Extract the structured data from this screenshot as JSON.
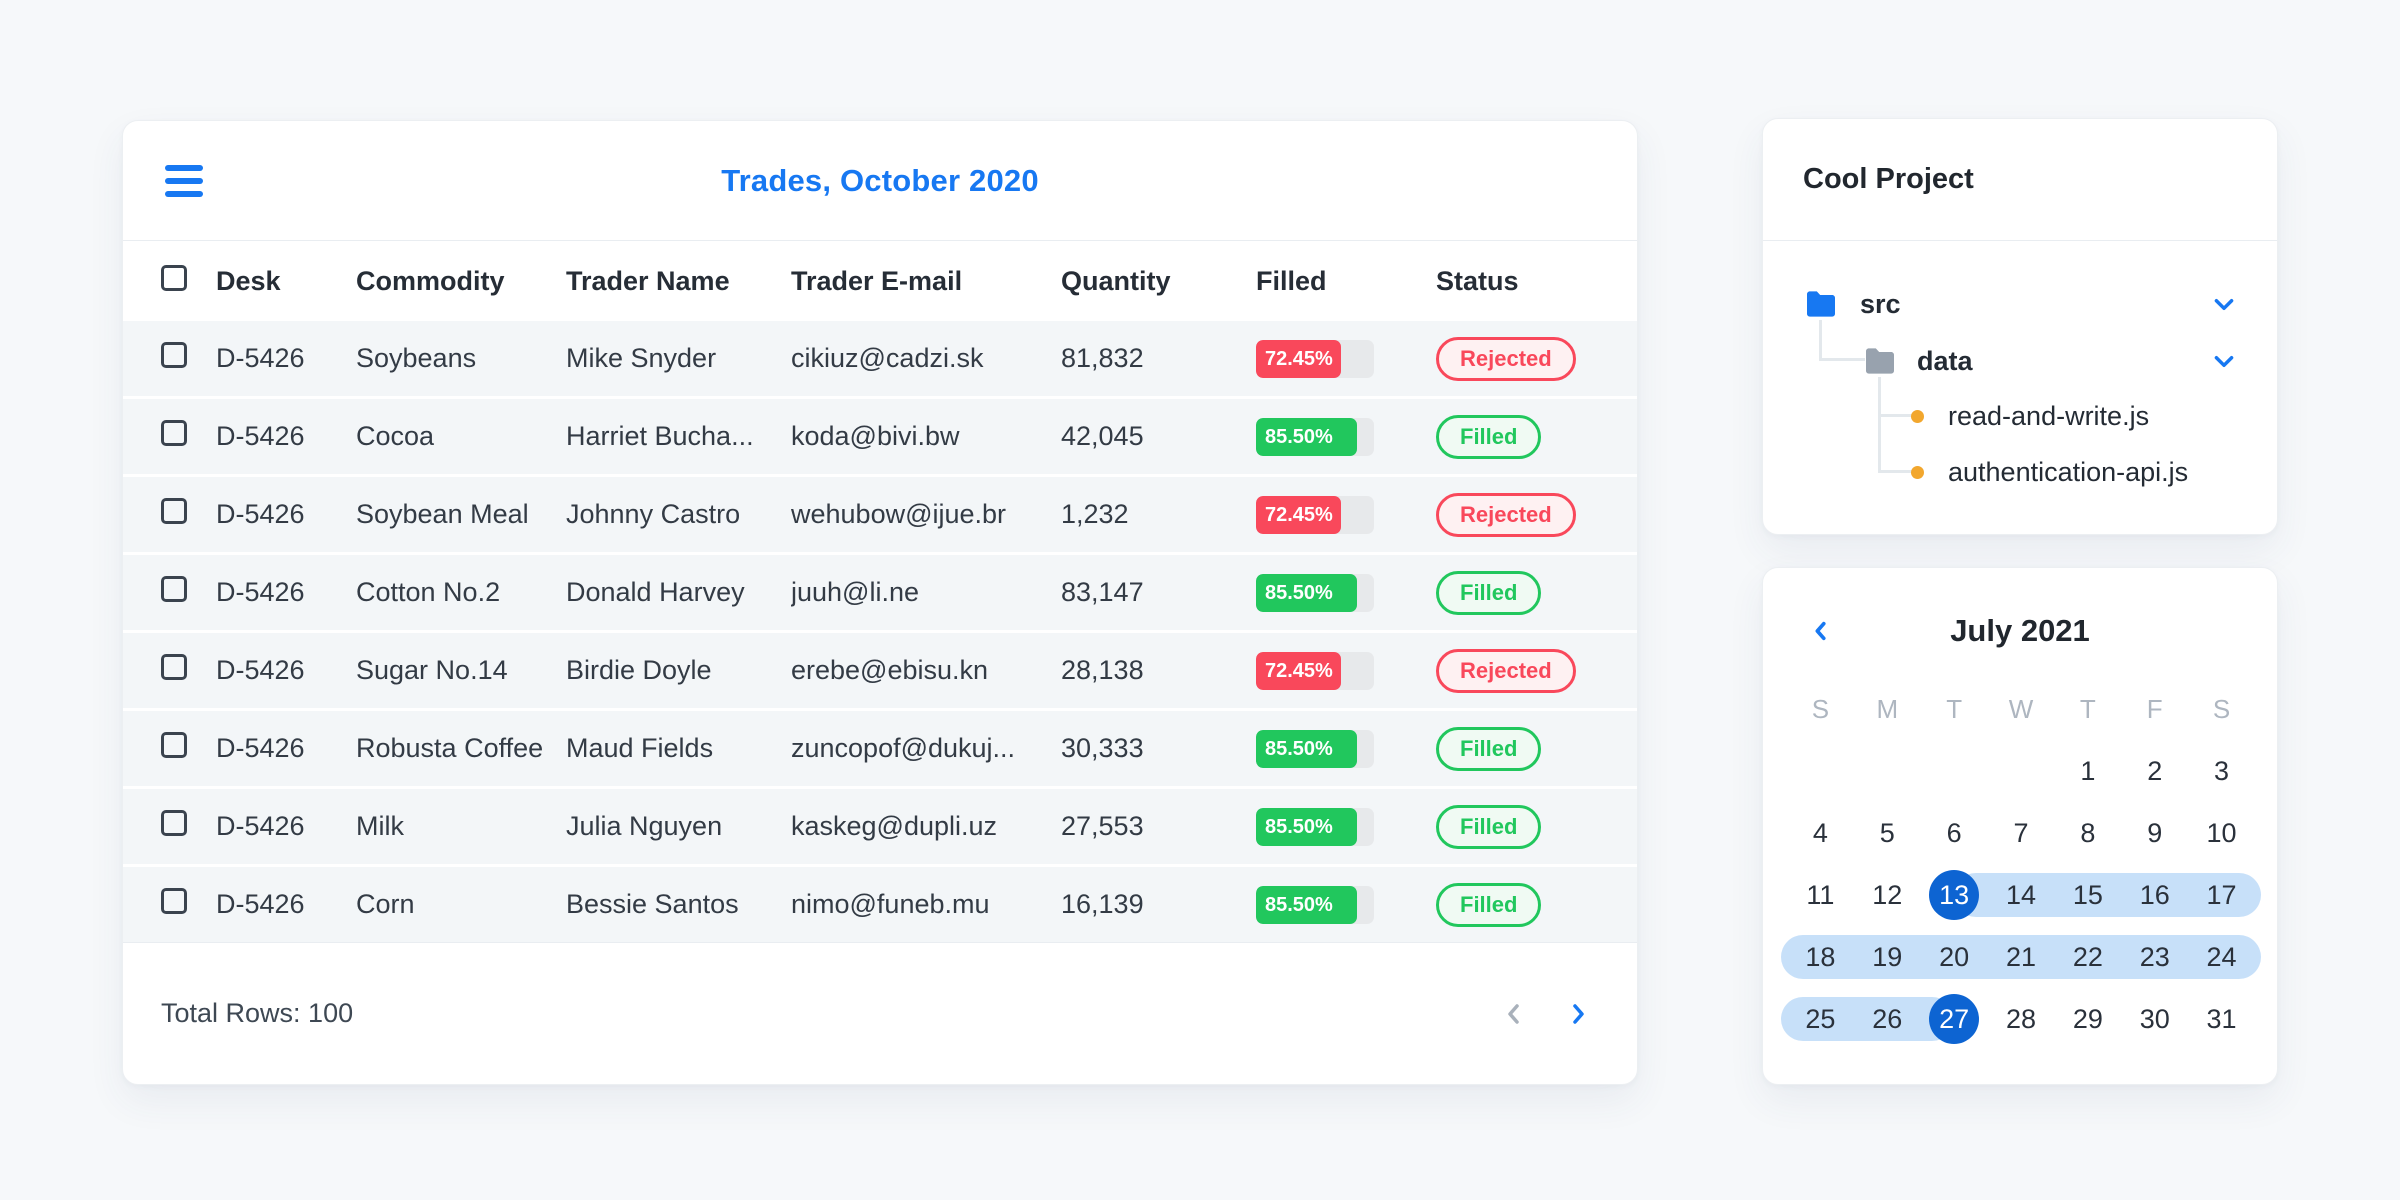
{
  "colors": {
    "accent_blue": "#1778F2",
    "selected_day_blue": "#0D64D2",
    "range_blue": "#C7E0F9",
    "bar_red": "#F9485B",
    "bar_green": "#21C75D",
    "badge_red_bg": "#FEF1F2",
    "badge_green_bg": "#F0FAF3",
    "folder_gray": "#98A2AE",
    "file_dot_orange": "#F2A72E",
    "page_bg": "#F6F8FA",
    "row_bg": "#F3F6F8"
  },
  "icons": {
    "menu": "hamburger-3-bars",
    "pager_prev": "chevron-left",
    "pager_next": "chevron-right",
    "calendar_prev": "chevron-left",
    "folder": "folder",
    "tree_expand": "chevron-down",
    "file_bullet": "orange-dot"
  },
  "trades": {
    "title": "Trades, October 2020",
    "columns": [
      "Desk",
      "Commodity",
      "Trader Name",
      "Trader E-mail",
      "Quantity",
      "Filled",
      "Status"
    ],
    "rows": [
      {
        "desk": "D-5426",
        "commodity": "Soybeans",
        "trader": "Mike Snyder",
        "email": "cikiuz@cadzi.sk",
        "quantity": "81,832",
        "filled_label": "72.45%",
        "filled_pct": 72.45,
        "status": "Rejected"
      },
      {
        "desk": "D-5426",
        "commodity": "Cocoa",
        "trader": "Harriet Bucha...",
        "email": "koda@bivi.bw",
        "quantity": "42,045",
        "filled_label": "85.50%",
        "filled_pct": 85.5,
        "status": "Filled"
      },
      {
        "desk": "D-5426",
        "commodity": "Soybean Meal",
        "trader": "Johnny Castro",
        "email": "wehubow@ijue.br",
        "quantity": "1,232",
        "filled_label": "72.45%",
        "filled_pct": 72.45,
        "status": "Rejected"
      },
      {
        "desk": "D-5426",
        "commodity": "Cotton No.2",
        "trader": "Donald Harvey",
        "email": "juuh@li.ne",
        "quantity": "83,147",
        "filled_label": "85.50%",
        "filled_pct": 85.5,
        "status": "Filled"
      },
      {
        "desk": "D-5426",
        "commodity": "Sugar No.14",
        "trader": "Birdie Doyle",
        "email": "erebe@ebisu.kn",
        "quantity": "28,138",
        "filled_label": "72.45%",
        "filled_pct": 72.45,
        "status": "Rejected"
      },
      {
        "desk": "D-5426",
        "commodity": "Robusta Coffee",
        "trader": "Maud Fields",
        "email": "zuncopof@dukuj...",
        "quantity": "30,333",
        "filled_label": "85.50%",
        "filled_pct": 85.5,
        "status": "Filled"
      },
      {
        "desk": "D-5426",
        "commodity": "Milk",
        "trader": "Julia Nguyen",
        "email": "kaskeg@dupli.uz",
        "quantity": "27,553",
        "filled_label": "85.50%",
        "filled_pct": 85.5,
        "status": "Filled"
      },
      {
        "desk": "D-5426",
        "commodity": "Corn",
        "trader": "Bessie Santos",
        "email": "nimo@funeb.mu",
        "quantity": "16,139",
        "filled_label": "85.50%",
        "filled_pct": 85.5,
        "status": "Filled"
      }
    ],
    "footer": {
      "total_label": "Total Rows: 100"
    }
  },
  "project": {
    "title": "Cool Project",
    "tree": {
      "root_folder": "src",
      "sub_folder": "data",
      "files": [
        "read-and-write.js",
        "authentication-api.js"
      ]
    }
  },
  "calendar": {
    "title": "July 2021",
    "day_headers": [
      "S",
      "M",
      "T",
      "W",
      "T",
      "F",
      "S"
    ],
    "weeks": [
      [
        null,
        null,
        null,
        null,
        1,
        2,
        3
      ],
      [
        4,
        5,
        6,
        7,
        8,
        9,
        10
      ],
      [
        11,
        12,
        13,
        14,
        15,
        16,
        17
      ],
      [
        18,
        19,
        20,
        21,
        22,
        23,
        24
      ],
      [
        25,
        26,
        27,
        28,
        29,
        30,
        31
      ]
    ],
    "selected_days": [
      13,
      27
    ],
    "range": {
      "start": 13,
      "end": 27
    }
  }
}
